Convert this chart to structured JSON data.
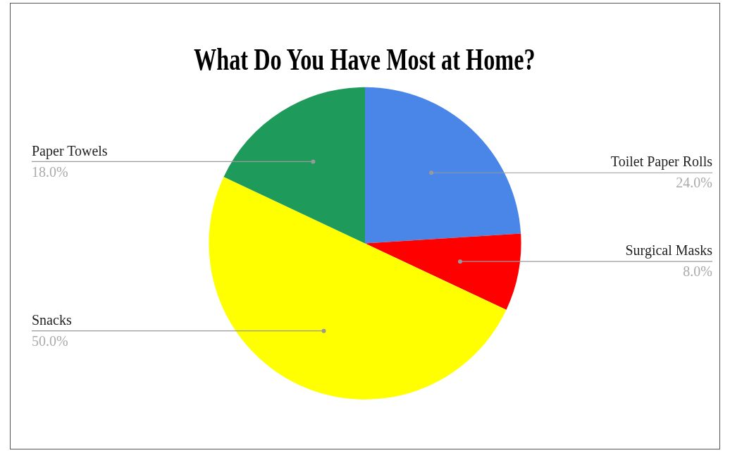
{
  "chart_data": {
    "type": "pie",
    "title": "What Do You Have Most at Home?",
    "categories": [
      "Toilet Paper Rolls",
      "Surgical Masks",
      "Snacks",
      "Paper Towels"
    ],
    "values": [
      24,
      8,
      50,
      18
    ],
    "colors": [
      "#4a86e8",
      "#ff0000",
      "#ffff00",
      "#1e9a5a"
    ],
    "value_labels": [
      "24.0%",
      "8.0%",
      "50.0%",
      "18.0%"
    ],
    "legend": false
  }
}
